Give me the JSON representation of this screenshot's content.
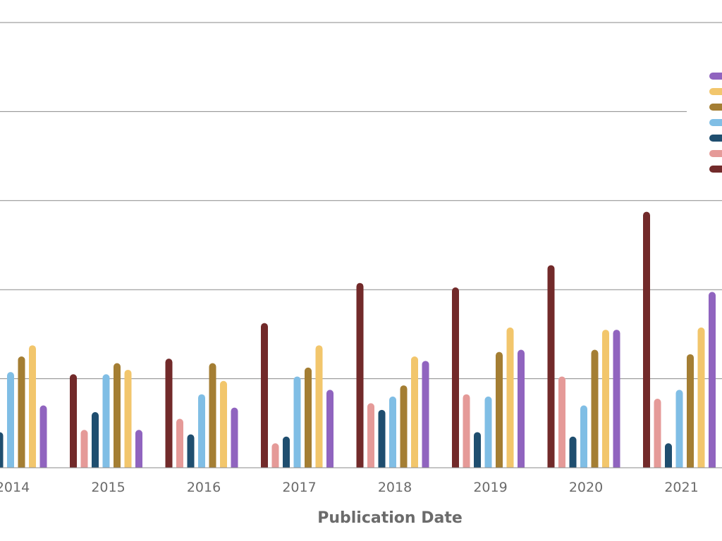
{
  "chart_data": {
    "type": "bar",
    "xlabel": "Publication Date",
    "ylabel": "",
    "grid": true,
    "legend_position": "right",
    "categories": [
      "2014",
      "2015",
      "2016",
      "2017",
      "2018",
      "2019",
      "2020",
      "2021"
    ],
    "ylim": [
      0,
      100
    ],
    "series": [
      {
        "color": "#722a2a",
        "values": [
          null,
          21,
          24.5,
          32.5,
          41.5,
          40.5,
          45.5,
          57.5
        ]
      },
      {
        "color": "#e59a98",
        "values": [
          null,
          8.5,
          11,
          5.5,
          14.5,
          16.5,
          20.5,
          15.5
        ]
      },
      {
        "color": "#1f4e6f",
        "values": [
          8,
          12.5,
          7.5,
          7,
          13,
          8,
          7,
          5.5
        ]
      },
      {
        "color": "#80bee5",
        "values": [
          21.5,
          21,
          16.5,
          20.5,
          16,
          16,
          14,
          17.5
        ]
      },
      {
        "color": "#a47e33",
        "values": [
          25,
          23.5,
          23.5,
          22.5,
          18.5,
          26,
          26.5,
          25.5
        ]
      },
      {
        "color": "#f2c66c",
        "values": [
          27.5,
          22,
          19.5,
          27.5,
          25,
          31.5,
          31,
          31.5
        ]
      },
      {
        "color": "#9064bf",
        "values": [
          14,
          8.5,
          13.5,
          17.5,
          24,
          26.5,
          31,
          39.5
        ]
      }
    ]
  }
}
